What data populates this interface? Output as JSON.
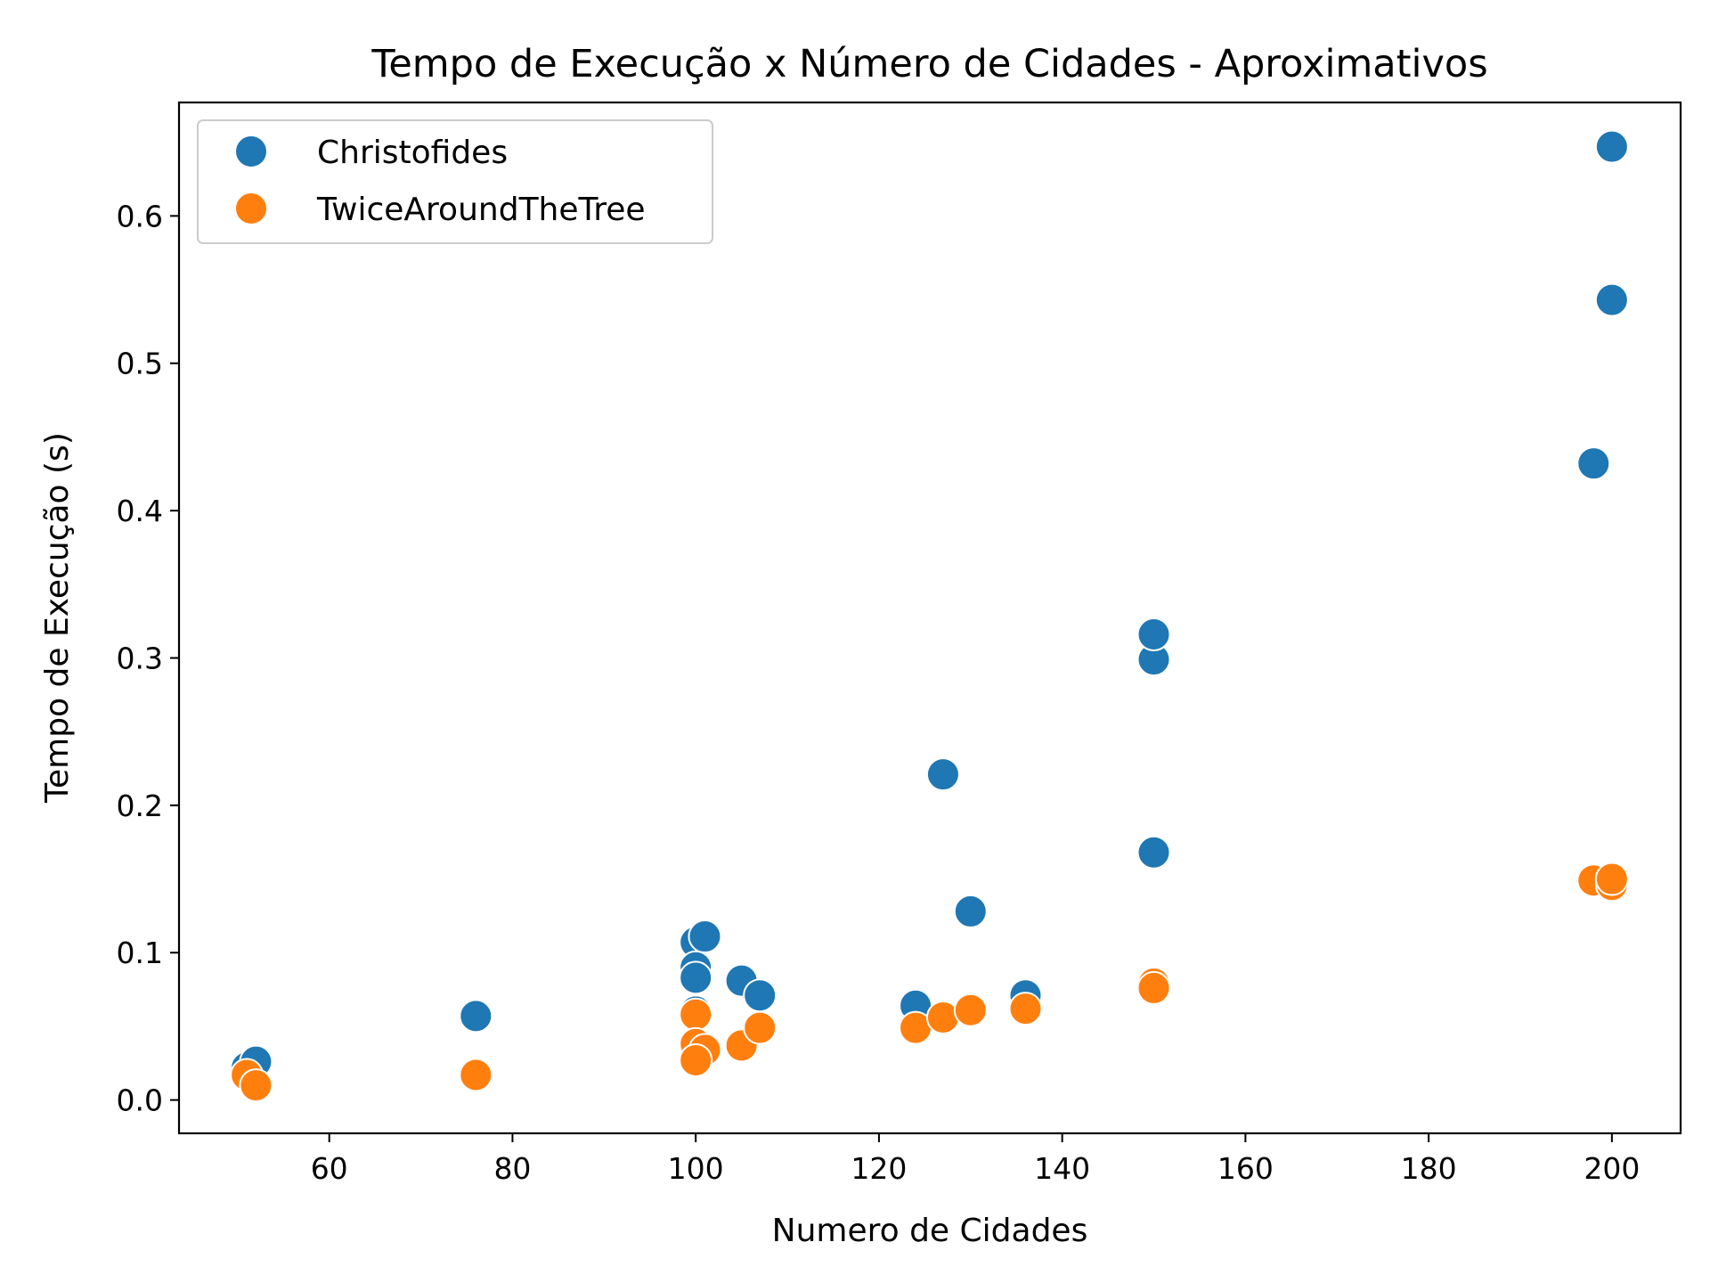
{
  "chart_data": {
    "type": "scatter",
    "title": "Tempo de Execução x Número de Cidades - Aproximativos",
    "xlabel": "Numero de Cidades",
    "ylabel": "Tempo de Execução (s)",
    "xlim": [
      43.6,
      207.5
    ],
    "ylim": [
      -0.0226,
      0.677
    ],
    "xticks": [
      60,
      80,
      100,
      120,
      140,
      160,
      180,
      200
    ],
    "yticks": [
      0.0,
      0.1,
      0.2,
      0.3,
      0.4,
      0.5,
      0.6
    ],
    "xtick_labels": [
      "60",
      "80",
      "100",
      "120",
      "140",
      "160",
      "180",
      "200"
    ],
    "ytick_labels": [
      "0.0",
      "0.1",
      "0.2",
      "0.3",
      "0.4",
      "0.5",
      "0.6"
    ],
    "grid": false,
    "legend_position": "top-left",
    "series": [
      {
        "name": "Christofides",
        "color": "#1f77b4",
        "points": [
          [
            51,
            0.022
          ],
          [
            52,
            0.026
          ],
          [
            76,
            0.057
          ],
          [
            100,
            0.107
          ],
          [
            101,
            0.111
          ],
          [
            100,
            0.09
          ],
          [
            100,
            0.083
          ],
          [
            100,
            0.06
          ],
          [
            105,
            0.081
          ],
          [
            107,
            0.071
          ],
          [
            124,
            0.064
          ],
          [
            127,
            0.221
          ],
          [
            130,
            0.128
          ],
          [
            136,
            0.071
          ],
          [
            150,
            0.299
          ],
          [
            150,
            0.316
          ],
          [
            150,
            0.168
          ],
          [
            198,
            0.432
          ],
          [
            200,
            0.543
          ],
          [
            200,
            0.647
          ],
          [
            150,
            0.076
          ]
        ]
      },
      {
        "name": "TwiceAroundTheTree",
        "color": "#ff7f0e",
        "points": [
          [
            51,
            0.017
          ],
          [
            52,
            0.01
          ],
          [
            76,
            0.017
          ],
          [
            100,
            0.058
          ],
          [
            100,
            0.038
          ],
          [
            101,
            0.034
          ],
          [
            100,
            0.027
          ],
          [
            105,
            0.037
          ],
          [
            107,
            0.049
          ],
          [
            124,
            0.049
          ],
          [
            127,
            0.056
          ],
          [
            130,
            0.061
          ],
          [
            136,
            0.062
          ],
          [
            150,
            0.079
          ],
          [
            150,
            0.076
          ],
          [
            198,
            0.149
          ],
          [
            200,
            0.146
          ],
          [
            200,
            0.15
          ]
        ]
      }
    ]
  }
}
